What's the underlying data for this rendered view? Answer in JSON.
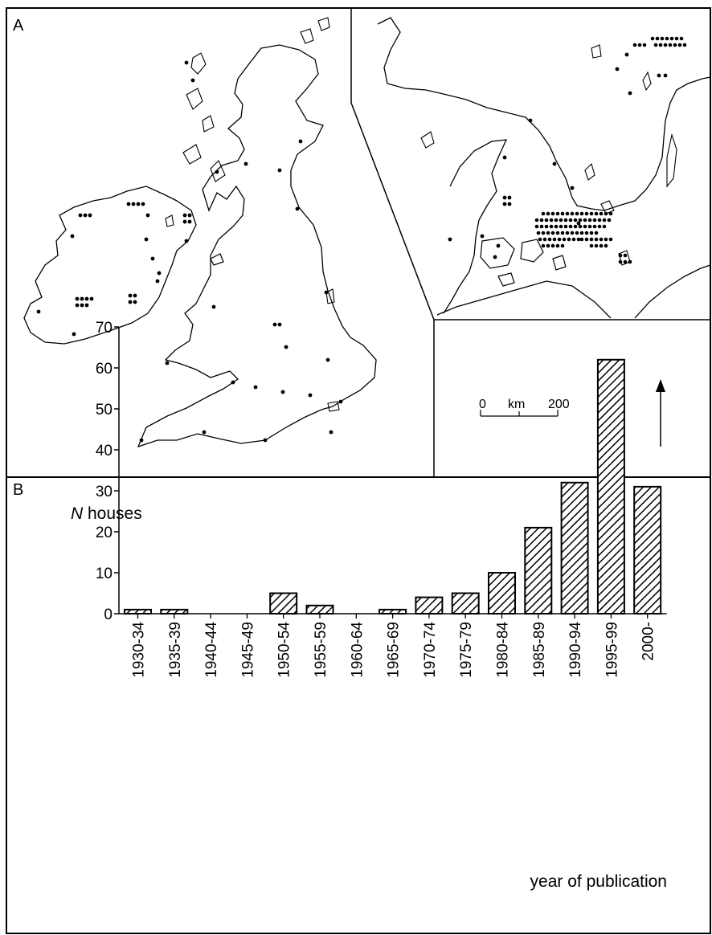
{
  "panel_a": {
    "label": "A",
    "scale_bar": {
      "start": "0",
      "unit": "km",
      "end": "200"
    },
    "north_arrow_icon": "north-arrow-icon"
  },
  "panel_b": {
    "label": "B",
    "y_label_italic": "N",
    "y_label_rest": " houses",
    "x_label": "year of publication"
  },
  "chart_data": {
    "type": "bar",
    "categories": [
      "1930-34",
      "1935-39",
      "1940-44",
      "1945-49",
      "1950-54",
      "1955-59",
      "1960-64",
      "1965-69",
      "1970-74",
      "1975-79",
      "1980-84",
      "1985-89",
      "1990-94",
      "1995-99",
      "2000-"
    ],
    "values": [
      1,
      1,
      0,
      0,
      5,
      2,
      0,
      1,
      4,
      5,
      10,
      21,
      32,
      62,
      31
    ],
    "ylim": [
      0,
      70
    ],
    "yticks": [
      0,
      10,
      20,
      30,
      40,
      50,
      60,
      70
    ],
    "bar_fill": "diagonal-hatch",
    "grid": false
  }
}
